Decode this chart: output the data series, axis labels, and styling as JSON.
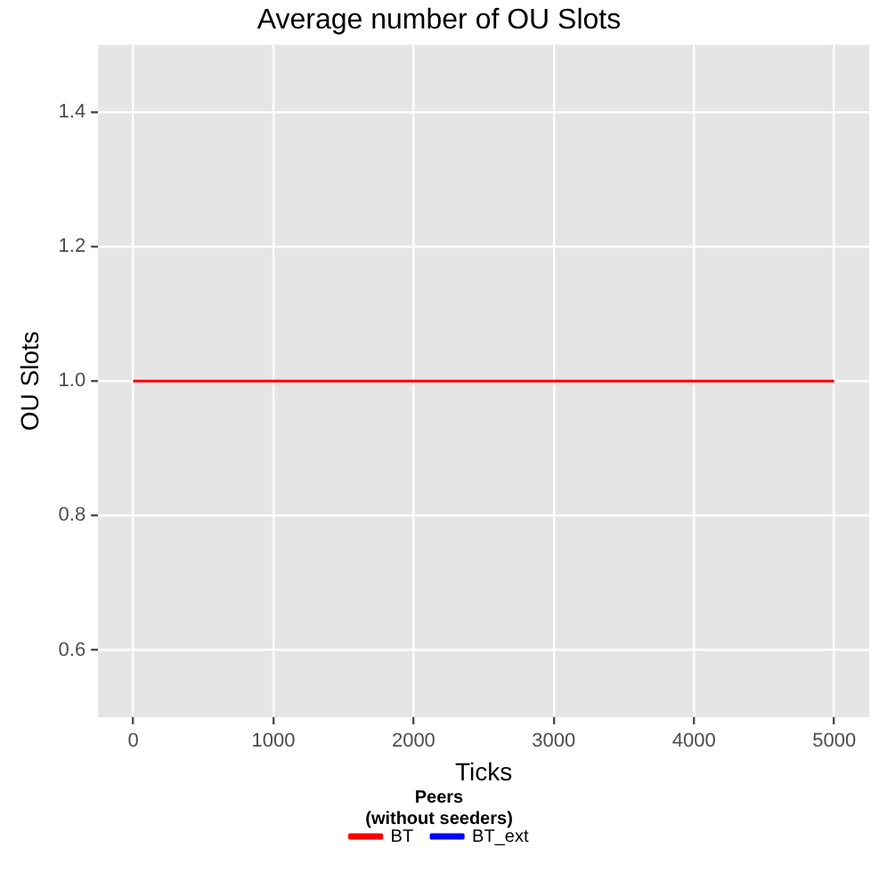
{
  "chart_data": {
    "type": "line",
    "title": "Average number of OU Slots",
    "xlabel": "Ticks",
    "ylabel": "OU Slots",
    "legend_title": "Peers\n(without seeders)",
    "x": [
      0,
      5000
    ],
    "series": [
      {
        "name": "BT",
        "color": "#ff0000",
        "values": [
          1,
          1
        ]
      },
      {
        "name": "BT_ext",
        "color": "#0000ff",
        "values": [
          null,
          null
        ]
      }
    ],
    "xlim": [
      -250,
      5250
    ],
    "xticks": [
      0,
      1000,
      2000,
      3000,
      4000,
      5000
    ],
    "ylim": [
      0.5,
      1.5
    ],
    "yticks": [
      0.6,
      0.8,
      {
        "value": 1,
        "label": "1.0"
      },
      1.2,
      1.4
    ],
    "grid": true,
    "legend": "bottom",
    "marker": "none",
    "line_style": "solid"
  }
}
